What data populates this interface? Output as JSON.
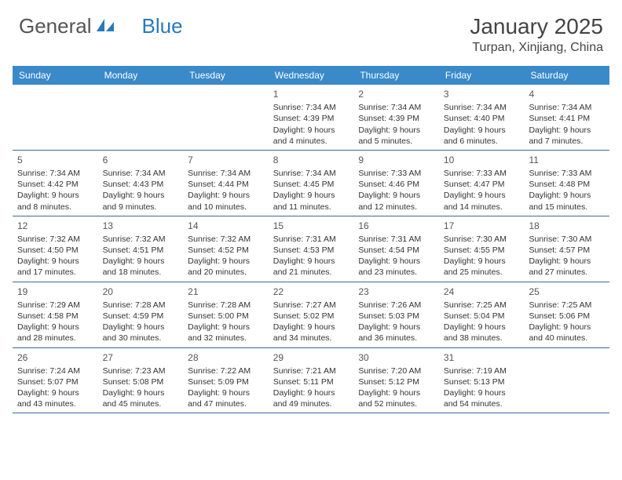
{
  "logo": {
    "text1": "General",
    "text2": "Blue"
  },
  "title": "January 2025",
  "location": "Turpan, Xinjiang, China",
  "header_bg": "#3a89c9",
  "divider_color": "#3a6a95",
  "day_headers": [
    "Sunday",
    "Monday",
    "Tuesday",
    "Wednesday",
    "Thursday",
    "Friday",
    "Saturday"
  ],
  "weeks": [
    [
      null,
      null,
      null,
      {
        "n": "1",
        "sr": "7:34 AM",
        "ss": "4:39 PM",
        "dl": "9 hours and 4 minutes."
      },
      {
        "n": "2",
        "sr": "7:34 AM",
        "ss": "4:39 PM",
        "dl": "9 hours and 5 minutes."
      },
      {
        "n": "3",
        "sr": "7:34 AM",
        "ss": "4:40 PM",
        "dl": "9 hours and 6 minutes."
      },
      {
        "n": "4",
        "sr": "7:34 AM",
        "ss": "4:41 PM",
        "dl": "9 hours and 7 minutes."
      }
    ],
    [
      {
        "n": "5",
        "sr": "7:34 AM",
        "ss": "4:42 PM",
        "dl": "9 hours and 8 minutes."
      },
      {
        "n": "6",
        "sr": "7:34 AM",
        "ss": "4:43 PM",
        "dl": "9 hours and 9 minutes."
      },
      {
        "n": "7",
        "sr": "7:34 AM",
        "ss": "4:44 PM",
        "dl": "9 hours and 10 minutes."
      },
      {
        "n": "8",
        "sr": "7:34 AM",
        "ss": "4:45 PM",
        "dl": "9 hours and 11 minutes."
      },
      {
        "n": "9",
        "sr": "7:33 AM",
        "ss": "4:46 PM",
        "dl": "9 hours and 12 minutes."
      },
      {
        "n": "10",
        "sr": "7:33 AM",
        "ss": "4:47 PM",
        "dl": "9 hours and 14 minutes."
      },
      {
        "n": "11",
        "sr": "7:33 AM",
        "ss": "4:48 PM",
        "dl": "9 hours and 15 minutes."
      }
    ],
    [
      {
        "n": "12",
        "sr": "7:32 AM",
        "ss": "4:50 PM",
        "dl": "9 hours and 17 minutes."
      },
      {
        "n": "13",
        "sr": "7:32 AM",
        "ss": "4:51 PM",
        "dl": "9 hours and 18 minutes."
      },
      {
        "n": "14",
        "sr": "7:32 AM",
        "ss": "4:52 PM",
        "dl": "9 hours and 20 minutes."
      },
      {
        "n": "15",
        "sr": "7:31 AM",
        "ss": "4:53 PM",
        "dl": "9 hours and 21 minutes."
      },
      {
        "n": "16",
        "sr": "7:31 AM",
        "ss": "4:54 PM",
        "dl": "9 hours and 23 minutes."
      },
      {
        "n": "17",
        "sr": "7:30 AM",
        "ss": "4:55 PM",
        "dl": "9 hours and 25 minutes."
      },
      {
        "n": "18",
        "sr": "7:30 AM",
        "ss": "4:57 PM",
        "dl": "9 hours and 27 minutes."
      }
    ],
    [
      {
        "n": "19",
        "sr": "7:29 AM",
        "ss": "4:58 PM",
        "dl": "9 hours and 28 minutes."
      },
      {
        "n": "20",
        "sr": "7:28 AM",
        "ss": "4:59 PM",
        "dl": "9 hours and 30 minutes."
      },
      {
        "n": "21",
        "sr": "7:28 AM",
        "ss": "5:00 PM",
        "dl": "9 hours and 32 minutes."
      },
      {
        "n": "22",
        "sr": "7:27 AM",
        "ss": "5:02 PM",
        "dl": "9 hours and 34 minutes."
      },
      {
        "n": "23",
        "sr": "7:26 AM",
        "ss": "5:03 PM",
        "dl": "9 hours and 36 minutes."
      },
      {
        "n": "24",
        "sr": "7:25 AM",
        "ss": "5:04 PM",
        "dl": "9 hours and 38 minutes."
      },
      {
        "n": "25",
        "sr": "7:25 AM",
        "ss": "5:06 PM",
        "dl": "9 hours and 40 minutes."
      }
    ],
    [
      {
        "n": "26",
        "sr": "7:24 AM",
        "ss": "5:07 PM",
        "dl": "9 hours and 43 minutes."
      },
      {
        "n": "27",
        "sr": "7:23 AM",
        "ss": "5:08 PM",
        "dl": "9 hours and 45 minutes."
      },
      {
        "n": "28",
        "sr": "7:22 AM",
        "ss": "5:09 PM",
        "dl": "9 hours and 47 minutes."
      },
      {
        "n": "29",
        "sr": "7:21 AM",
        "ss": "5:11 PM",
        "dl": "9 hours and 49 minutes."
      },
      {
        "n": "30",
        "sr": "7:20 AM",
        "ss": "5:12 PM",
        "dl": "9 hours and 52 minutes."
      },
      {
        "n": "31",
        "sr": "7:19 AM",
        "ss": "5:13 PM",
        "dl": "9 hours and 54 minutes."
      },
      null
    ]
  ],
  "labels": {
    "sunrise": "Sunrise:",
    "sunset": "Sunset:",
    "daylight": "Daylight:"
  }
}
